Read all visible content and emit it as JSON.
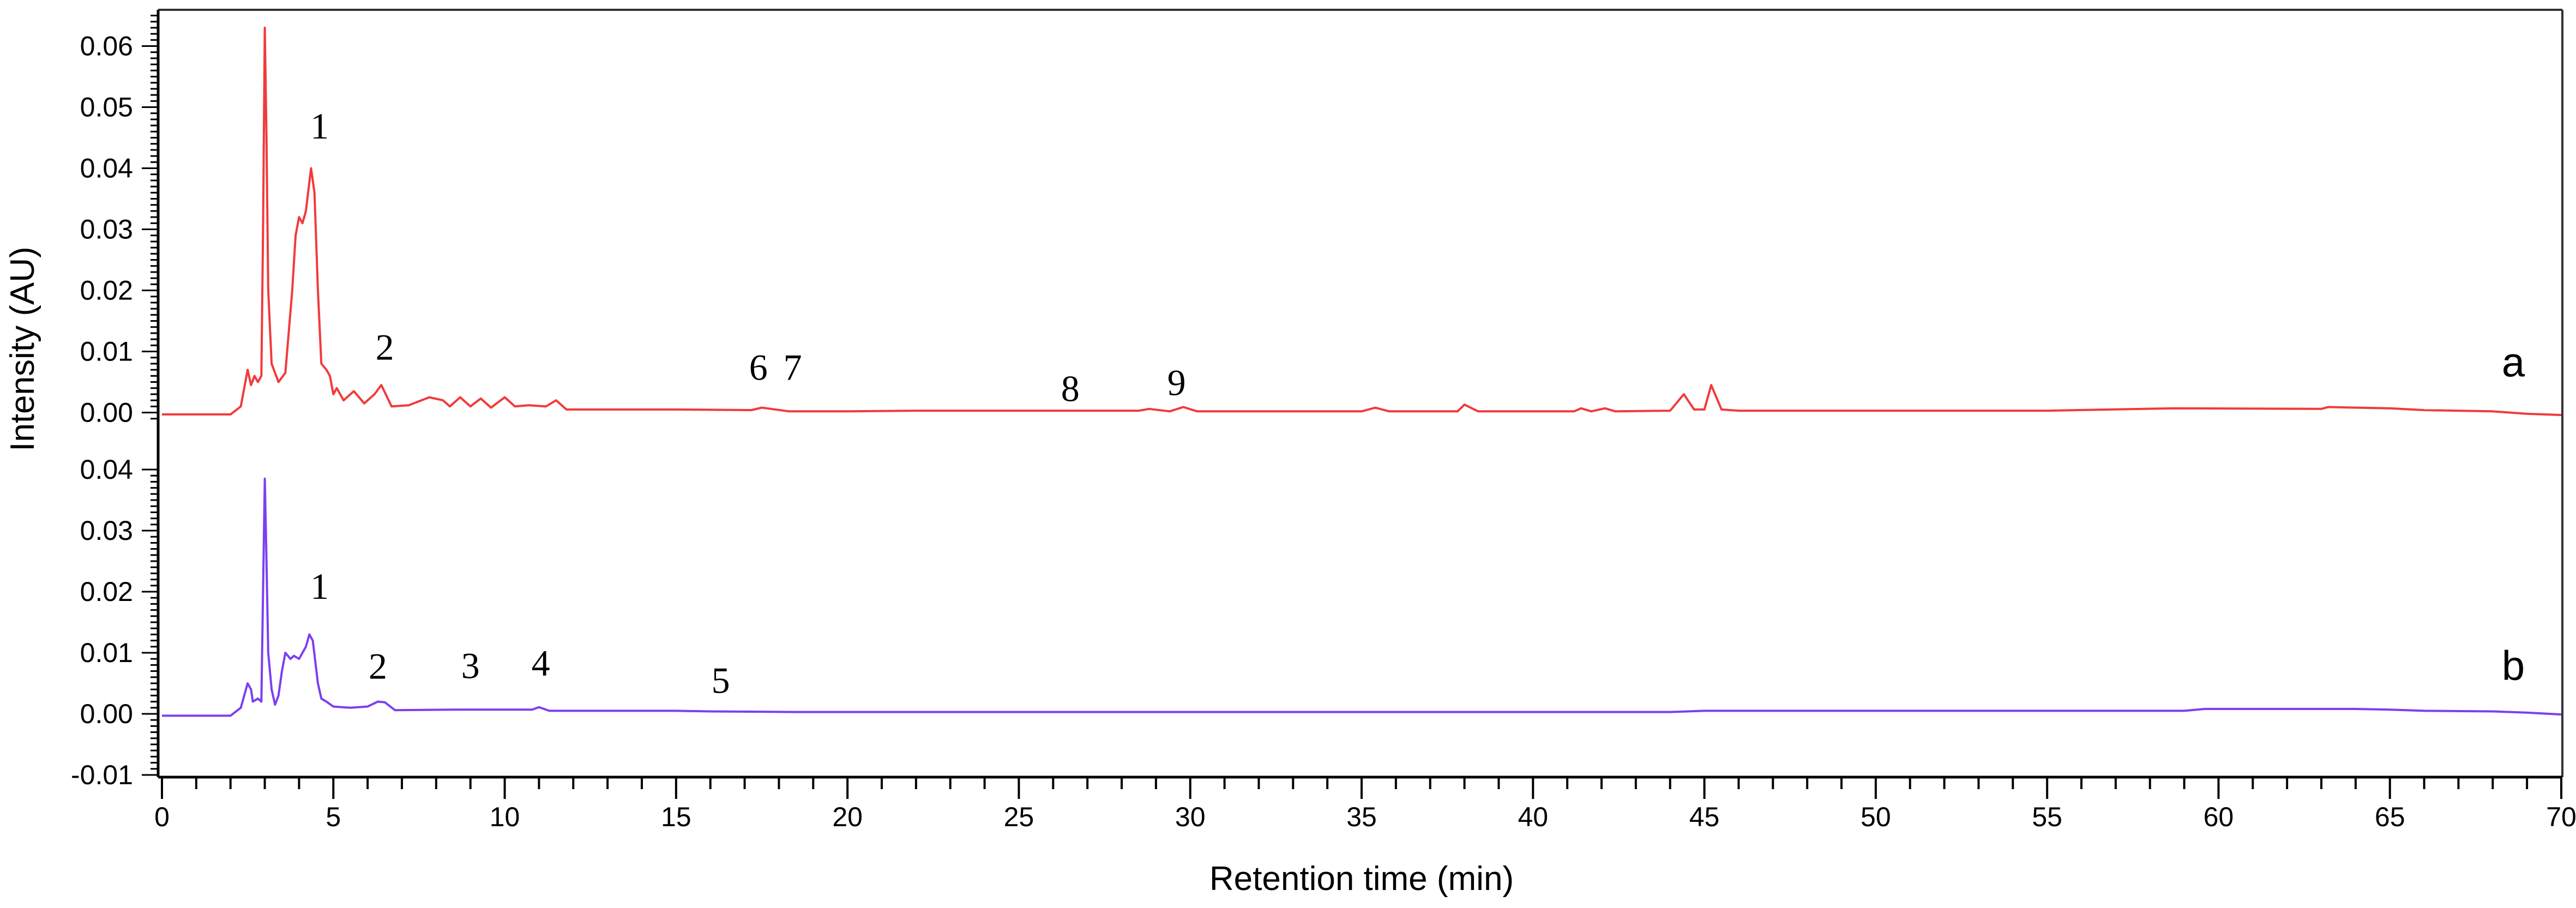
{
  "chart_data": {
    "type": "line",
    "xlabel": "Retention time (min)",
    "ylabel": "Intensity (AU)",
    "xlim": [
      0,
      70
    ],
    "x_ticks": [
      "0",
      "5",
      "10",
      "15",
      "20",
      "25",
      "30",
      "35",
      "40",
      "45",
      "50",
      "55",
      "60",
      "65",
      "70"
    ],
    "x_minor_step": 1,
    "grid": false,
    "colors": {
      "a": "#F23A3A",
      "b": "#7B3FF2",
      "axis": "#333333"
    },
    "panels": [
      {
        "id": "a",
        "trace_label": "a",
        "ylim": [
          -0.001,
          0.065
        ],
        "y_ticks": [
          "0.00",
          "0.01",
          "0.02",
          "0.03",
          "0.04",
          "0.05",
          "0.06"
        ],
        "y_minor_step": 0.001,
        "trace_label_pos": {
          "x": 68.6,
          "y": 0.0082
        },
        "peak_labels": [
          {
            "text": "1",
            "x": 4.6,
            "y": 0.047
          },
          {
            "text": "2",
            "x": 6.5,
            "y": 0.0108
          },
          {
            "text": "6",
            "x": 17.4,
            "y": 0.0075
          },
          {
            "text": "7",
            "x": 18.4,
            "y": 0.0075
          },
          {
            "text": "8",
            "x": 26.5,
            "y": 0.004
          },
          {
            "text": "9",
            "x": 29.6,
            "y": 0.005
          }
        ],
        "points": [
          [
            0,
            -0.0003
          ],
          [
            2.0,
            -0.0003
          ],
          [
            2.3,
            0.001
          ],
          [
            2.5,
            0.007
          ],
          [
            2.6,
            0.0045
          ],
          [
            2.7,
            0.006
          ],
          [
            2.8,
            0.005
          ],
          [
            2.9,
            0.006
          ],
          [
            2.95,
            0.03
          ],
          [
            3.0,
            0.063
          ],
          [
            3.05,
            0.045
          ],
          [
            3.1,
            0.02
          ],
          [
            3.2,
            0.008
          ],
          [
            3.4,
            0.005
          ],
          [
            3.6,
            0.0065
          ],
          [
            3.8,
            0.02
          ],
          [
            3.9,
            0.029
          ],
          [
            4.0,
            0.032
          ],
          [
            4.1,
            0.031
          ],
          [
            4.2,
            0.033
          ],
          [
            4.35,
            0.04
          ],
          [
            4.45,
            0.036
          ],
          [
            4.55,
            0.02
          ],
          [
            4.65,
            0.008
          ],
          [
            4.8,
            0.007
          ],
          [
            4.9,
            0.006
          ],
          [
            5.0,
            0.003
          ],
          [
            5.1,
            0.004
          ],
          [
            5.3,
            0.002
          ],
          [
            5.6,
            0.0035
          ],
          [
            5.9,
            0.0015
          ],
          [
            6.2,
            0.003
          ],
          [
            6.4,
            0.0045
          ],
          [
            6.7,
            0.001
          ],
          [
            7.2,
            0.0012
          ],
          [
            7.8,
            0.0025
          ],
          [
            8.2,
            0.002
          ],
          [
            8.4,
            0.001
          ],
          [
            8.7,
            0.0025
          ],
          [
            9.0,
            0.001
          ],
          [
            9.3,
            0.0023
          ],
          [
            9.6,
            0.0008
          ],
          [
            10.0,
            0.0025
          ],
          [
            10.3,
            0.001
          ],
          [
            10.7,
            0.0012
          ],
          [
            11.2,
            0.001
          ],
          [
            11.5,
            0.002
          ],
          [
            11.8,
            0.0005
          ],
          [
            12.5,
            0.0005
          ],
          [
            15.0,
            0.0005
          ],
          [
            17.2,
            0.0004
          ],
          [
            17.5,
            0.0008
          ],
          [
            18.3,
            0.0002
          ],
          [
            20,
            0.0002
          ],
          [
            22,
            0.0003
          ],
          [
            28.5,
            0.0003
          ],
          [
            28.8,
            0.0006
          ],
          [
            29.4,
            0.0002
          ],
          [
            29.8,
            0.0009
          ],
          [
            30.2,
            0.0002
          ],
          [
            35,
            0.0002
          ],
          [
            35.4,
            0.0008
          ],
          [
            35.8,
            0.0002
          ],
          [
            37.8,
            0.0002
          ],
          [
            38.0,
            0.0013
          ],
          [
            38.4,
            0.0002
          ],
          [
            41.2,
            0.0002
          ],
          [
            41.4,
            0.0007
          ],
          [
            41.7,
            0.0002
          ],
          [
            42.1,
            0.0007
          ],
          [
            42.4,
            0.0002
          ],
          [
            44.0,
            0.0003
          ],
          [
            44.4,
            0.003
          ],
          [
            44.7,
            0.0005
          ],
          [
            45.0,
            0.0005
          ],
          [
            45.2,
            0.0045
          ],
          [
            45.5,
            0.0005
          ],
          [
            46,
            0.0003
          ],
          [
            55,
            0.0003
          ],
          [
            58.7,
            0.0007
          ],
          [
            63,
            0.0006
          ],
          [
            63.2,
            0.0009
          ],
          [
            64,
            0.0008
          ],
          [
            65,
            0.0007
          ],
          [
            66,
            0.0004
          ],
          [
            68,
            0.0002
          ],
          [
            69,
            -0.0002
          ],
          [
            70,
            -0.0004
          ]
        ]
      },
      {
        "id": "b",
        "trace_label": "b",
        "ylim": [
          -0.01,
          0.04
        ],
        "y_ticks": [
          "-0.01",
          "0.00",
          "0.01",
          "0.02",
          "0.03",
          "0.04"
        ],
        "y_minor_step": 0.001,
        "trace_label_pos": {
          "x": 68.6,
          "y": 0.0079
        },
        "peak_labels": [
          {
            "text": "1",
            "x": 4.6,
            "y": 0.021
          },
          {
            "text": "2",
            "x": 6.3,
            "y": 0.0079
          },
          {
            "text": "3",
            "x": 9.0,
            "y": 0.008
          },
          {
            "text": "4",
            "x": 11.05,
            "y": 0.0084
          },
          {
            "text": "5",
            "x": 16.3,
            "y": 0.0056
          }
        ],
        "points": [
          [
            0,
            -0.0003
          ],
          [
            2.0,
            -0.0003
          ],
          [
            2.3,
            0.001
          ],
          [
            2.5,
            0.005
          ],
          [
            2.6,
            0.004
          ],
          [
            2.65,
            0.002
          ],
          [
            2.8,
            0.0025
          ],
          [
            2.9,
            0.002
          ],
          [
            2.95,
            0.02
          ],
          [
            3.0,
            0.0385
          ],
          [
            3.05,
            0.025
          ],
          [
            3.1,
            0.01
          ],
          [
            3.2,
            0.004
          ],
          [
            3.3,
            0.0015
          ],
          [
            3.4,
            0.003
          ],
          [
            3.5,
            0.007
          ],
          [
            3.6,
            0.01
          ],
          [
            3.75,
            0.009
          ],
          [
            3.85,
            0.0095
          ],
          [
            4.0,
            0.009
          ],
          [
            4.2,
            0.011
          ],
          [
            4.3,
            0.013
          ],
          [
            4.4,
            0.012
          ],
          [
            4.55,
            0.005
          ],
          [
            4.65,
            0.0025
          ],
          [
            4.8,
            0.002
          ],
          [
            5.0,
            0.0012
          ],
          [
            5.5,
            0.001
          ],
          [
            6.0,
            0.0012
          ],
          [
            6.3,
            0.002
          ],
          [
            6.5,
            0.0019
          ],
          [
            6.8,
            0.0006
          ],
          [
            8.5,
            0.0007
          ],
          [
            9.3,
            0.0007
          ],
          [
            10.8,
            0.0007
          ],
          [
            11.0,
            0.0011
          ],
          [
            11.3,
            0.0005
          ],
          [
            15,
            0.0005
          ],
          [
            16,
            0.0004
          ],
          [
            18.5,
            0.0003
          ],
          [
            44,
            0.0003
          ],
          [
            45,
            0.0005
          ],
          [
            59,
            0.0005
          ],
          [
            59.6,
            0.0008
          ],
          [
            64,
            0.0008
          ],
          [
            65,
            0.0007
          ],
          [
            66,
            0.0005
          ],
          [
            68,
            0.0004
          ],
          [
            69,
            0.0002
          ],
          [
            70,
            -0.0001
          ]
        ]
      }
    ]
  }
}
